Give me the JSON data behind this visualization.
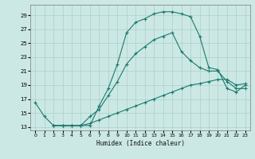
{
  "xlabel": "Humidex (Indice chaleur)",
  "background_color": "#cce8e4",
  "grid_color": "#aacfcb",
  "line_color": "#1a7a6e",
  "xlim": [
    -0.5,
    23.5
  ],
  "ylim": [
    12.5,
    30.5
  ],
  "xticks": [
    0,
    1,
    2,
    3,
    4,
    5,
    6,
    7,
    8,
    9,
    10,
    11,
    12,
    13,
    14,
    15,
    16,
    17,
    18,
    19,
    20,
    21,
    22,
    23
  ],
  "yticks": [
    13,
    15,
    17,
    19,
    21,
    23,
    25,
    27,
    29
  ],
  "line1_x": [
    0,
    1,
    2,
    3,
    4,
    5,
    6,
    7,
    8,
    9,
    10,
    11,
    12,
    13,
    14,
    15,
    16,
    17,
    18,
    19,
    20,
    21,
    22,
    23
  ],
  "line1_y": [
    16.5,
    14.5,
    13.2,
    13.2,
    13.2,
    13.2,
    13.2,
    16.0,
    18.5,
    22.0,
    26.5,
    28.0,
    28.5,
    29.2,
    29.5,
    29.5,
    29.2,
    28.8,
    26.0,
    21.5,
    21.2,
    18.5,
    18.0,
    19.0
  ],
  "line2_x": [
    2,
    3,
    4,
    5,
    6,
    7,
    8,
    9,
    10,
    11,
    12,
    13,
    14,
    15,
    16,
    17,
    18,
    19,
    20,
    21,
    22,
    23
  ],
  "line2_y": [
    13.2,
    13.2,
    13.2,
    13.2,
    14.5,
    15.5,
    17.5,
    19.5,
    22.0,
    23.5,
    24.5,
    25.5,
    26.0,
    26.5,
    23.8,
    22.5,
    21.5,
    21.0,
    21.0,
    19.5,
    18.5,
    18.5
  ],
  "line3_x": [
    2,
    3,
    4,
    5,
    6,
    7,
    8,
    9,
    10,
    11,
    12,
    13,
    14,
    15,
    16,
    17,
    18,
    19,
    20,
    21,
    22,
    23
  ],
  "line3_y": [
    13.2,
    13.2,
    13.2,
    13.2,
    13.5,
    14.0,
    14.5,
    15.0,
    15.5,
    16.0,
    16.5,
    17.0,
    17.5,
    18.0,
    18.5,
    19.0,
    19.2,
    19.5,
    19.8,
    19.8,
    19.0,
    19.2
  ]
}
